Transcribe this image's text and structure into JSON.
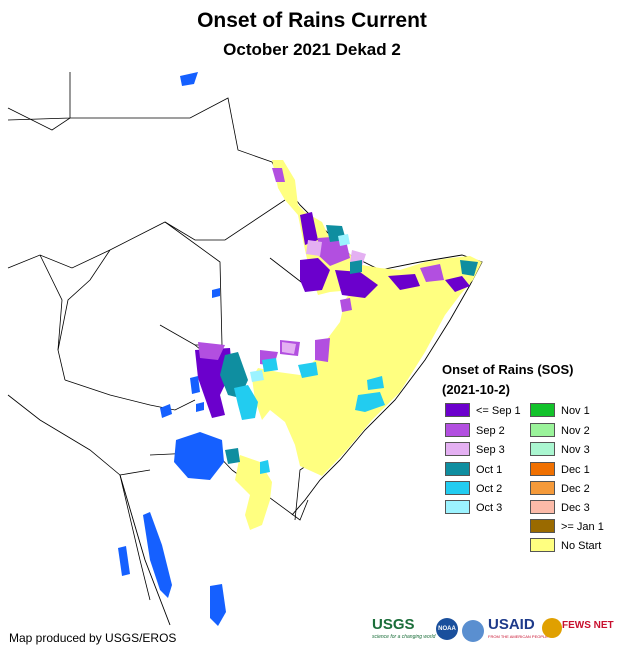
{
  "title": "Onset of Rains Current",
  "subtitle": "October 2021 Dekad 2",
  "legend": {
    "title": "Onset of Rains (SOS)",
    "subtitle": "(2021-10-2)",
    "left_column": [
      {
        "label": "<= Sep 1",
        "color": "#6b00cc"
      },
      {
        "label": "Sep 2",
        "color": "#b24fe0"
      },
      {
        "label": "Sep 3",
        "color": "#e4b0f2"
      },
      {
        "label": "Oct 1",
        "color": "#0f8ea0"
      },
      {
        "label": "Oct 2",
        "color": "#22ccf0"
      },
      {
        "label": "Oct 3",
        "color": "#9cf3ff"
      }
    ],
    "right_column": [
      {
        "label": "Nov 1",
        "color": "#12c22a"
      },
      {
        "label": "Nov 2",
        "color": "#9af39a"
      },
      {
        "label": "Nov 3",
        "color": "#aaf6d0"
      },
      {
        "label": "Dec 1",
        "color": "#f07000"
      },
      {
        "label": "Dec 2",
        "color": "#f59a3a"
      },
      {
        "label": "Dec 3",
        "color": "#fbbaa8"
      },
      {
        "label": ">= Jan 1",
        "color": "#9a6a00"
      },
      {
        "label": "No Start",
        "color": "#ffff80"
      }
    ]
  },
  "credit": "Map produced by USGS/EROS",
  "logos": {
    "usgs": "USGS",
    "usgs_tagline": "science for a changing world",
    "noaa": "NOAA",
    "usaid": "USAID",
    "usaid_tagline": "FROM THE AMERICAN PEOPLE",
    "fewsnet": "FEWS NET"
  },
  "colors": {
    "water": "#1560ff",
    "no_start": "#ffff80",
    "border": "#000000"
  }
}
